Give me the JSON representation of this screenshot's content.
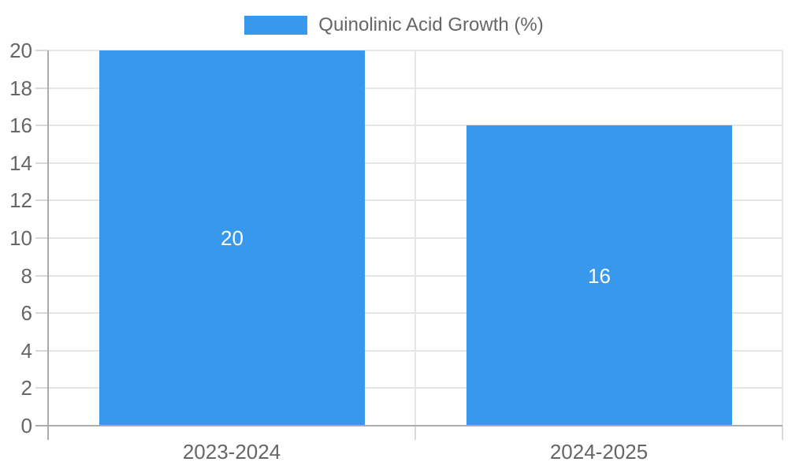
{
  "legend": {
    "position": "top",
    "items": [
      {
        "label": "Quinolinic Acid Growth (%)",
        "swatch_color": "#3899EC"
      }
    ]
  },
  "chart_data": {
    "type": "bar",
    "title": "",
    "categories": [
      "2023-2024",
      "2024-2025"
    ],
    "series": [
      {
        "name": "Quinolinic Acid Growth (%)",
        "values": [
          20,
          16
        ],
        "color": "#3899EC"
      }
    ],
    "data_labels": [
      "20",
      "16"
    ],
    "xlabel": "",
    "ylabel": "",
    "ylim": [
      0,
      20
    ],
    "yticks": [
      0,
      2,
      4,
      6,
      8,
      10,
      12,
      14,
      16,
      18,
      20
    ],
    "grid": true,
    "legend_position": "top",
    "colors": {
      "bar": "#3899EC",
      "grid": "#E6E6E6",
      "axis_border": "#ABABAB",
      "tick_mark": "#D9D9D9",
      "tick_label": "#666666",
      "data_label": "#FFFFFF",
      "background": "#FFFFFF"
    }
  }
}
